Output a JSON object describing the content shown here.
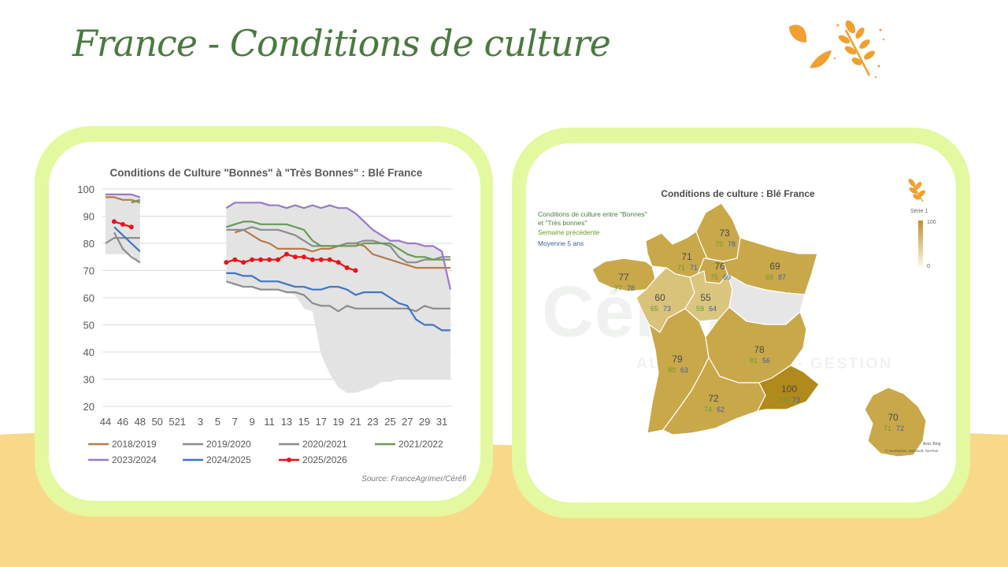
{
  "page": {
    "title": "France - Conditions de culture",
    "colors": {
      "title": "#4a7a3f",
      "card_border": "#e4f8a0",
      "bottom_band": "#f8d98a",
      "map_fill": "#c9a84a"
    }
  },
  "chart_data": {
    "type": "line",
    "title": "Conditions de Culture \"Bonnes\" à \"Très Bonnes\" : Blé France",
    "source": "Source: FranceAgrimer/Céréfi",
    "ylim": [
      20,
      100
    ],
    "yticks": [
      20,
      30,
      40,
      50,
      60,
      70,
      80,
      90,
      100
    ],
    "xticks": [
      "44",
      "46",
      "48",
      "50",
      "52",
      "1",
      "3",
      "5",
      "7",
      "9",
      "11",
      "13",
      "15",
      "17",
      "19",
      "21",
      "23",
      "25",
      "27",
      "29",
      "31"
    ],
    "weeks": [
      "44",
      "45",
      "46",
      "47",
      "48",
      "49",
      "50",
      "51",
      "52",
      "1",
      "2",
      "3",
      "4",
      "5",
      "6",
      "7",
      "8",
      "9",
      "10",
      "11",
      "12",
      "13",
      "14",
      "15",
      "16",
      "17",
      "18",
      "19",
      "20",
      "21",
      "22",
      "23",
      "24",
      "25",
      "26",
      "27",
      "28",
      "29",
      "30",
      "31",
      "32"
    ],
    "grid": "horizontal",
    "legend_position": "bottom",
    "range_band": {
      "upper": [
        98,
        98,
        98,
        98,
        97,
        null,
        null,
        null,
        null,
        null,
        null,
        null,
        null,
        null,
        93,
        95,
        95,
        95,
        95,
        94,
        94,
        93,
        94,
        93,
        94,
        93,
        94,
        93,
        93,
        91,
        88,
        85,
        83,
        81,
        81,
        80,
        80,
        79,
        79,
        77,
        63
      ],
      "lower": [
        76,
        76,
        76,
        76,
        72,
        null,
        null,
        null,
        null,
        null,
        null,
        null,
        null,
        null,
        66,
        65,
        64,
        64,
        63,
        63,
        63,
        62,
        61,
        56,
        55,
        39,
        32,
        27,
        25,
        25,
        26,
        27,
        29,
        29,
        30,
        30,
        30,
        30,
        30,
        30,
        30
      ]
    },
    "series": [
      {
        "name": "2018/2019",
        "color": "#b87a4b",
        "marker": false,
        "values": [
          97,
          97,
          96,
          96,
          95,
          null,
          null,
          null,
          null,
          null,
          null,
          null,
          null,
          null,
          null,
          84,
          85,
          83,
          81,
          80,
          78,
          78,
          78,
          78,
          77,
          78,
          78,
          79,
          80,
          80,
          79,
          76,
          75,
          74,
          73,
          72,
          71,
          71,
          71,
          71,
          71
        ]
      },
      {
        "name": "2019/2020",
        "color": "#8c8c8c",
        "marker": false,
        "values": [
          null,
          84,
          78,
          75,
          73,
          null,
          null,
          null,
          null,
          null,
          null,
          null,
          null,
          null,
          66,
          65,
          64,
          64,
          63,
          63,
          63,
          62,
          62,
          61,
          58,
          57,
          57,
          55,
          57,
          56,
          56,
          56,
          56,
          56,
          56,
          56,
          55,
          57,
          56,
          56,
          56
        ]
      },
      {
        "name": "2020/2021",
        "color": "#8c8c8c",
        "marker": false,
        "values": [
          80,
          82,
          82,
          82,
          82,
          null,
          null,
          null,
          null,
          null,
          null,
          null,
          null,
          null,
          85,
          85,
          85,
          86,
          85,
          85,
          85,
          84,
          83,
          81,
          79,
          79,
          79,
          79,
          80,
          80,
          81,
          81,
          80,
          79,
          75,
          73,
          73,
          74,
          74,
          75,
          75
        ]
      },
      {
        "name": "2021/2022",
        "color": "#6a9a56",
        "marker": false,
        "values": [
          null,
          null,
          null,
          95,
          96,
          null,
          null,
          null,
          null,
          null,
          null,
          null,
          null,
          null,
          86,
          87,
          88,
          88,
          87,
          87,
          87,
          87,
          86,
          85,
          81,
          79,
          79,
          79,
          79,
          79,
          80,
          80,
          80,
          80,
          78,
          76,
          75,
          75,
          74,
          74,
          74
        ]
      },
      {
        "name": "2023/2024",
        "color": "#9a78cc",
        "marker": false,
        "values": [
          98,
          98,
          98,
          98,
          97,
          null,
          null,
          null,
          null,
          null,
          null,
          null,
          null,
          null,
          93,
          95,
          95,
          95,
          95,
          94,
          94,
          93,
          94,
          93,
          94,
          93,
          94,
          93,
          93,
          91,
          88,
          85,
          83,
          81,
          81,
          80,
          80,
          79,
          79,
          77,
          63
        ]
      },
      {
        "name": "2024/2025",
        "color": "#3f74c4",
        "marker": false,
        "values": [
          null,
          86,
          83,
          80,
          77,
          null,
          null,
          null,
          null,
          null,
          null,
          null,
          null,
          null,
          69,
          69,
          68,
          68,
          66,
          66,
          66,
          65,
          64,
          64,
          63,
          63,
          64,
          64,
          63,
          61,
          62,
          62,
          62,
          60,
          58,
          57,
          52,
          50,
          50,
          48,
          48
        ]
      },
      {
        "name": "2025/2026",
        "color": "#e8141a",
        "marker": true,
        "values": [
          null,
          88,
          87,
          86,
          null,
          null,
          null,
          null,
          null,
          null,
          null,
          null,
          null,
          null,
          73,
          74,
          73,
          74,
          74,
          74,
          74,
          76,
          75,
          75,
          74,
          74,
          74,
          73,
          71,
          70,
          null,
          null,
          null,
          null,
          null,
          null,
          null,
          null,
          null,
          null,
          null
        ]
      }
    ]
  },
  "map": {
    "title": "Conditions de culture : Blé France",
    "legend": {
      "line1": "Conditions de culture entre \"Bonnes\"",
      "line2": "et \"Très bonnes\"",
      "week_label": "Semaine précédente",
      "avg_label": "Moyenne 5 ans",
      "colors": {
        "current": "#4a7a3f",
        "previous": "#6a9a2a",
        "average": "#3f5fa8"
      }
    },
    "scale": {
      "title": "Série 1",
      "max": "100",
      "min": "0"
    },
    "watermark": {
      "brand": "Céréfi",
      "tagline": "AUDIT - CONSEIL - GESTION"
    },
    "attribution": {
      "bing": "Avec Bing",
      "credits": "© GeoNames, Microsoft, TomTom"
    },
    "regions": [
      {
        "id": "hauts-de-france",
        "current": "73",
        "previous": "75",
        "average": "78"
      },
      {
        "id": "normandie",
        "current": "71",
        "previous": "71",
        "average": "71"
      },
      {
        "id": "ile-de-france",
        "current": "76",
        "previous": "75",
        "average": "69"
      },
      {
        "id": "grand-est",
        "current": "69",
        "previous": "69",
        "average": "87"
      },
      {
        "id": "bretagne",
        "current": "77",
        "previous": "77",
        "average": "78"
      },
      {
        "id": "pays-de-la-loire",
        "current": "60",
        "previous": "65",
        "average": "73"
      },
      {
        "id": "centre-val-de-loire",
        "current": "55",
        "previous": "59",
        "average": "64"
      },
      {
        "id": "nouvelle-aquitaine",
        "current": "79",
        "previous": "80",
        "average": "63"
      },
      {
        "id": "auvergne-rhone-alpes",
        "current": "78",
        "previous": "81",
        "average": "56"
      },
      {
        "id": "occitanie",
        "current": "72",
        "previous": "74",
        "average": "62"
      },
      {
        "id": "provence-alpes-cote-d-azur",
        "current": "100",
        "previous": "100",
        "average": "73"
      },
      {
        "id": "france-inset",
        "current": "70",
        "previous": "71",
        "average": "72"
      }
    ]
  }
}
